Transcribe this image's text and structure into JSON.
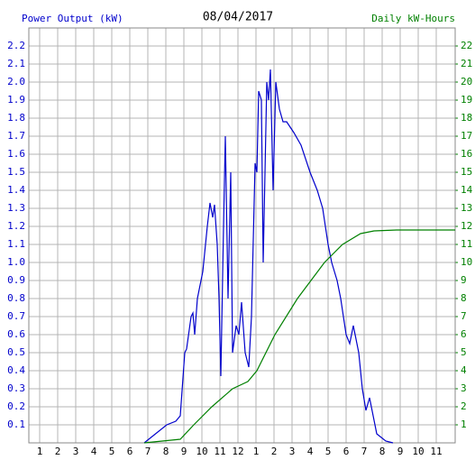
{
  "chart_data": {
    "type": "line",
    "title": "08/04/2017",
    "y_label": "Power Output (kW)",
    "y2_label": "Daily kW-Hours",
    "grid": true,
    "xlim": [
      0.4,
      24.05
    ],
    "xticks": [
      1,
      2,
      3,
      4,
      5,
      6,
      7,
      8,
      9,
      10,
      11,
      12,
      {
        "value": 13,
        "label": "1"
      },
      {
        "value": 14,
        "label": "2"
      },
      {
        "value": 15,
        "label": "3"
      },
      {
        "value": 16,
        "label": "4"
      },
      {
        "value": 17,
        "label": "5"
      },
      {
        "value": 18,
        "label": "6"
      },
      {
        "value": 19,
        "label": "7"
      },
      {
        "value": 20,
        "label": "8"
      },
      {
        "value": 21,
        "label": "9"
      },
      {
        "value": 22,
        "label": "10"
      },
      {
        "value": 23,
        "label": "11"
      }
    ],
    "ylim": [
      0,
      2.3
    ],
    "yticks": [
      0.1,
      0.2,
      0.3,
      0.4,
      0.5,
      0.6,
      0.7,
      0.8,
      0.9,
      {
        "value": 1,
        "label": "1.0"
      },
      1.1,
      1.2,
      1.3,
      1.4,
      1.5,
      1.6,
      1.7,
      1.8,
      1.9,
      {
        "value": 2,
        "label": "2.0"
      },
      2.1,
      2.2
    ],
    "y2lim": [
      0,
      23
    ],
    "y2ticks": [
      1,
      2,
      3,
      4,
      5,
      6,
      7,
      8,
      9,
      10,
      11,
      12,
      13,
      14,
      15,
      16,
      17,
      18,
      19,
      20,
      21,
      22
    ],
    "series": [
      {
        "name": "Power Output (kW)",
        "color": "#0000cc",
        "axis": "y",
        "x": [
          6.8,
          8.05,
          8.55,
          8.8,
          9.05,
          9.15,
          9.4,
          9.5,
          9.6,
          9.75,
          10.05,
          10.3,
          10.45,
          10.6,
          10.7,
          10.85,
          10.95,
          11.05,
          11.2,
          11.3,
          11.45,
          11.6,
          11.7,
          11.9,
          12.05,
          12.2,
          12.4,
          12.6,
          12.75,
          12.95,
          13.05,
          13.15,
          13.3,
          13.4,
          13.5,
          13.6,
          13.7,
          13.8,
          13.95,
          14.1,
          14.3,
          14.5,
          14.7,
          15.1,
          15.5,
          16,
          16.4,
          16.7,
          17,
          17.2,
          17.5,
          17.7,
          18,
          18.2,
          18.4,
          18.7,
          18.9,
          19.1,
          19.3,
          19.5,
          19.7,
          20.2,
          20.6
        ],
        "values": [
          0,
          0.1,
          0.12,
          0.15,
          0.5,
          0.52,
          0.7,
          0.72,
          0.6,
          0.8,
          0.95,
          1.2,
          1.33,
          1.25,
          1.32,
          1.1,
          0.8,
          0.37,
          1.2,
          1.7,
          0.8,
          1.5,
          0.5,
          0.65,
          0.6,
          0.78,
          0.5,
          0.42,
          0.7,
          1.55,
          1.5,
          1.95,
          1.9,
          1.0,
          1.5,
          2.0,
          1.9,
          2.07,
          1.4,
          2.0,
          1.85,
          1.78,
          1.78,
          1.72,
          1.65,
          1.5,
          1.4,
          1.3,
          1.1,
          1.0,
          0.9,
          0.8,
          0.6,
          0.55,
          0.65,
          0.5,
          0.3,
          0.18,
          0.25,
          0.15,
          0.05,
          0.01,
          0
        ]
      },
      {
        "name": "Daily kW-Hours",
        "color": "#008000",
        "axis": "y2",
        "x": [
          6.8,
          8.8,
          9.55,
          10.55,
          11.7,
          12.55,
          13.05,
          14.05,
          15.3,
          16.8,
          17.8,
          18.8,
          19.55,
          20.8,
          24.05
        ],
        "values": [
          0,
          0.2,
          1,
          2,
          3,
          3.4,
          4,
          6,
          8,
          10,
          11,
          11.6,
          11.75,
          11.8,
          11.8
        ]
      }
    ]
  }
}
